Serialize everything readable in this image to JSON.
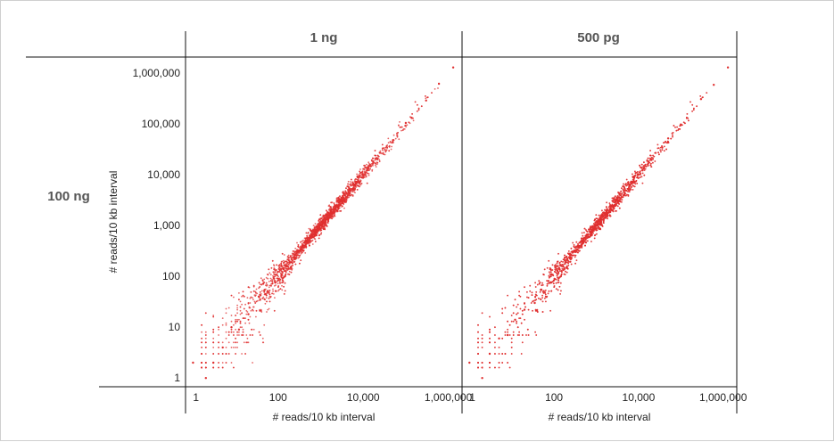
{
  "figure": {
    "col_headers": [
      "1 ng",
      "500 pg"
    ],
    "row_header": "100 ng"
  },
  "chart_data": [
    {
      "type": "scatter",
      "panel": "1 ng",
      "row": "100 ng",
      "xlabel": "# reads/10 kb interval",
      "ylabel": "# reads/10 kb interval",
      "x_scale": "log",
      "y_scale": "log",
      "xlim": [
        0.7,
        2000000
      ],
      "ylim": [
        0.7,
        2000000
      ],
      "x_ticks": [
        1,
        100,
        10000,
        1000000
      ],
      "x_tick_labels": [
        "1",
        "100",
        "10,000",
        "1,000,000"
      ],
      "y_ticks": [
        1,
        10,
        100,
        1000,
        10000,
        100000,
        1000000
      ],
      "y_tick_labels": [
        "1",
        "10",
        "100",
        "1,000",
        "10,000",
        "100,000",
        "1,000,000"
      ],
      "grid": false,
      "marker_color": "#e03030",
      "trend": "points lie along y = x, dense around 1,000–10,000, wider spread below 100",
      "points": [
        [
          1,
          2
        ],
        [
          2,
          1
        ],
        [
          3,
          2
        ],
        [
          5,
          4
        ],
        [
          8,
          10
        ],
        [
          12,
          9
        ],
        [
          20,
          18
        ],
        [
          35,
          40
        ],
        [
          50,
          45
        ],
        [
          80,
          90
        ],
        [
          120,
          110
        ],
        [
          200,
          190
        ],
        [
          350,
          370
        ],
        [
          500,
          480
        ],
        [
          800,
          820
        ],
        [
          1200,
          1150
        ],
        [
          2000,
          2100
        ],
        [
          3500,
          3300
        ],
        [
          6000,
          6200
        ],
        [
          10000,
          9800
        ],
        [
          20000,
          21000
        ],
        [
          50000,
          48000
        ],
        [
          100000,
          105000
        ],
        [
          300000,
          290000
        ],
        [
          600000,
          620000
        ],
        [
          1300000,
          1300000
        ]
      ]
    },
    {
      "type": "scatter",
      "panel": "500 pg",
      "row": "100 ng",
      "xlabel": "# reads/10 kb interval",
      "ylabel": "",
      "x_scale": "log",
      "y_scale": "log",
      "xlim": [
        0.7,
        2000000
      ],
      "ylim": [
        0.7,
        2000000
      ],
      "x_ticks": [
        1,
        100,
        10000,
        1000000
      ],
      "x_tick_labels": [
        "1",
        "100",
        "10,000",
        "1,000,000"
      ],
      "grid": false,
      "marker_color": "#e03030",
      "trend": "points lie along y = x, dense around 1,000–10,000, wider spread below 100",
      "points": [
        [
          1,
          2
        ],
        [
          2,
          1
        ],
        [
          3,
          3
        ],
        [
          5,
          6
        ],
        [
          8,
          7
        ],
        [
          12,
          14
        ],
        [
          20,
          22
        ],
        [
          35,
          30
        ],
        [
          50,
          55
        ],
        [
          80,
          75
        ],
        [
          120,
          130
        ],
        [
          200,
          210
        ],
        [
          350,
          330
        ],
        [
          500,
          520
        ],
        [
          800,
          780
        ],
        [
          1200,
          1250
        ],
        [
          2000,
          1950
        ],
        [
          3500,
          3600
        ],
        [
          6000,
          5900
        ],
        [
          10000,
          10200
        ],
        [
          20000,
          19500
        ],
        [
          50000,
          52000
        ],
        [
          100000,
          98000
        ],
        [
          300000,
          310000
        ],
        [
          600000,
          590000
        ],
        [
          1300000,
          1300000
        ]
      ]
    }
  ]
}
